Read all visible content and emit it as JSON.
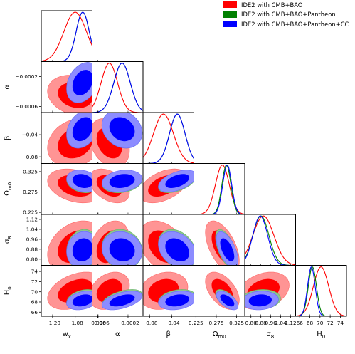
{
  "chart_data": {
    "type": "triangle-contour",
    "parameters": [
      "w_x",
      "α",
      "β",
      "Ω_m0",
      "σ_8",
      "H_0"
    ],
    "x_axis_labels": [
      "w",
      "α",
      "β",
      "Ω",
      "σ",
      "H"
    ],
    "x_axis_label_subscripts": [
      "x",
      "",
      "",
      "m0",
      "8",
      "0"
    ],
    "y_axis_labels": [
      "",
      "α",
      "β",
      "Ω",
      "σ",
      "H"
    ],
    "y_axis_label_subscripts": [
      "",
      "",
      "",
      "m0",
      "8",
      "0"
    ],
    "ranges": [
      [
        -1.26,
        -0.99
      ],
      [
        -0.00068,
        0.0
      ],
      [
        -0.092,
        0.0
      ],
      [
        0.22,
        0.345
      ],
      [
        0.75,
        1.16
      ],
      [
        65.2,
        75.2
      ]
    ],
    "ticks": [
      [
        "−1.20",
        "−1.08",
        "−0.96"
      ],
      [
        "−0.0006",
        "−0.0002"
      ],
      [
        "−0.08",
        "−0.04"
      ],
      [
        "0.225",
        "0.275",
        "0.325"
      ],
      [
        "0.80",
        "0.88",
        "0.96",
        "1.04",
        "1.12"
      ],
      [
        "66",
        "68",
        "70",
        "72",
        "74"
      ]
    ],
    "tick_values": [
      [
        -1.2,
        -1.08,
        -0.96
      ],
      [
        -0.0006,
        -0.0002
      ],
      [
        -0.08,
        -0.04
      ],
      [
        0.225,
        0.275,
        0.325
      ],
      [
        0.8,
        0.88,
        0.96,
        1.04,
        1.12
      ],
      [
        66,
        68,
        70,
        72,
        74
      ]
    ],
    "legend_placement": "top-right",
    "series": [
      {
        "name": "IDE2 with CMB+BAO",
        "color": "#ff0000",
        "mean": [
          -1.08,
          -0.00045,
          -0.055,
          0.29,
          0.9,
          70.2
        ],
        "sigma": [
          0.06,
          0.00011,
          0.018,
          0.017,
          0.085,
          1.5
        ],
        "corr": [
          [
            1,
            -0.2,
            0.2,
            -0.3,
            0.3,
            0.4
          ],
          [
            -0.2,
            1,
            -0.3,
            -0.4,
            0.3,
            0.3
          ],
          [
            0.2,
            -0.3,
            1,
            0.45,
            -0.35,
            0.2
          ],
          [
            -0.3,
            -0.4,
            0.45,
            1,
            -0.55,
            -0.5
          ],
          [
            0.3,
            0.3,
            -0.35,
            -0.55,
            1,
            0.3
          ],
          [
            0.4,
            0.3,
            0.2,
            -0.5,
            0.3,
            1
          ]
        ]
      },
      {
        "name": "IDE2 with CMB+BAO+Pantheon",
        "color": "#008000",
        "mean": [
          -1.04,
          -0.00028,
          -0.03,
          0.3,
          0.88,
          68.5
        ],
        "sigma": [
          0.035,
          0.00011,
          0.014,
          0.011,
          0.065,
          0.8
        ],
        "corr": [
          [
            1,
            0.3,
            0.3,
            -0.2,
            0.1,
            0.3
          ],
          [
            0.3,
            1,
            -0.2,
            0.2,
            -0.1,
            0.5
          ],
          [
            0.3,
            -0.2,
            1,
            0.5,
            -0.3,
            0.25
          ],
          [
            -0.2,
            0.2,
            0.5,
            1,
            -0.6,
            -0.6
          ],
          [
            0.1,
            -0.1,
            -0.3,
            -0.6,
            1,
            0.1
          ],
          [
            0.3,
            0.5,
            0.25,
            -0.6,
            0.1,
            1
          ]
        ]
      },
      {
        "name": "IDE2 with CMB+BAO+Pantheon+CC",
        "color": "#0000ff",
        "mean": [
          -1.04,
          -0.00028,
          -0.03,
          0.302,
          0.875,
          68.3
        ],
        "sigma": [
          0.035,
          0.00011,
          0.014,
          0.011,
          0.06,
          0.75
        ],
        "corr": [
          [
            1,
            0.3,
            0.3,
            -0.2,
            0.1,
            0.3
          ],
          [
            0.3,
            1,
            -0.2,
            0.2,
            -0.1,
            0.5
          ],
          [
            0.3,
            -0.2,
            1,
            0.5,
            -0.3,
            0.25
          ],
          [
            -0.2,
            0.2,
            0.5,
            1,
            -0.6,
            -0.6
          ],
          [
            0.1,
            -0.1,
            -0.3,
            -0.6,
            1,
            0.1
          ],
          [
            0.3,
            0.5,
            0.25,
            -0.6,
            0.1,
            1
          ]
        ]
      }
    ]
  }
}
